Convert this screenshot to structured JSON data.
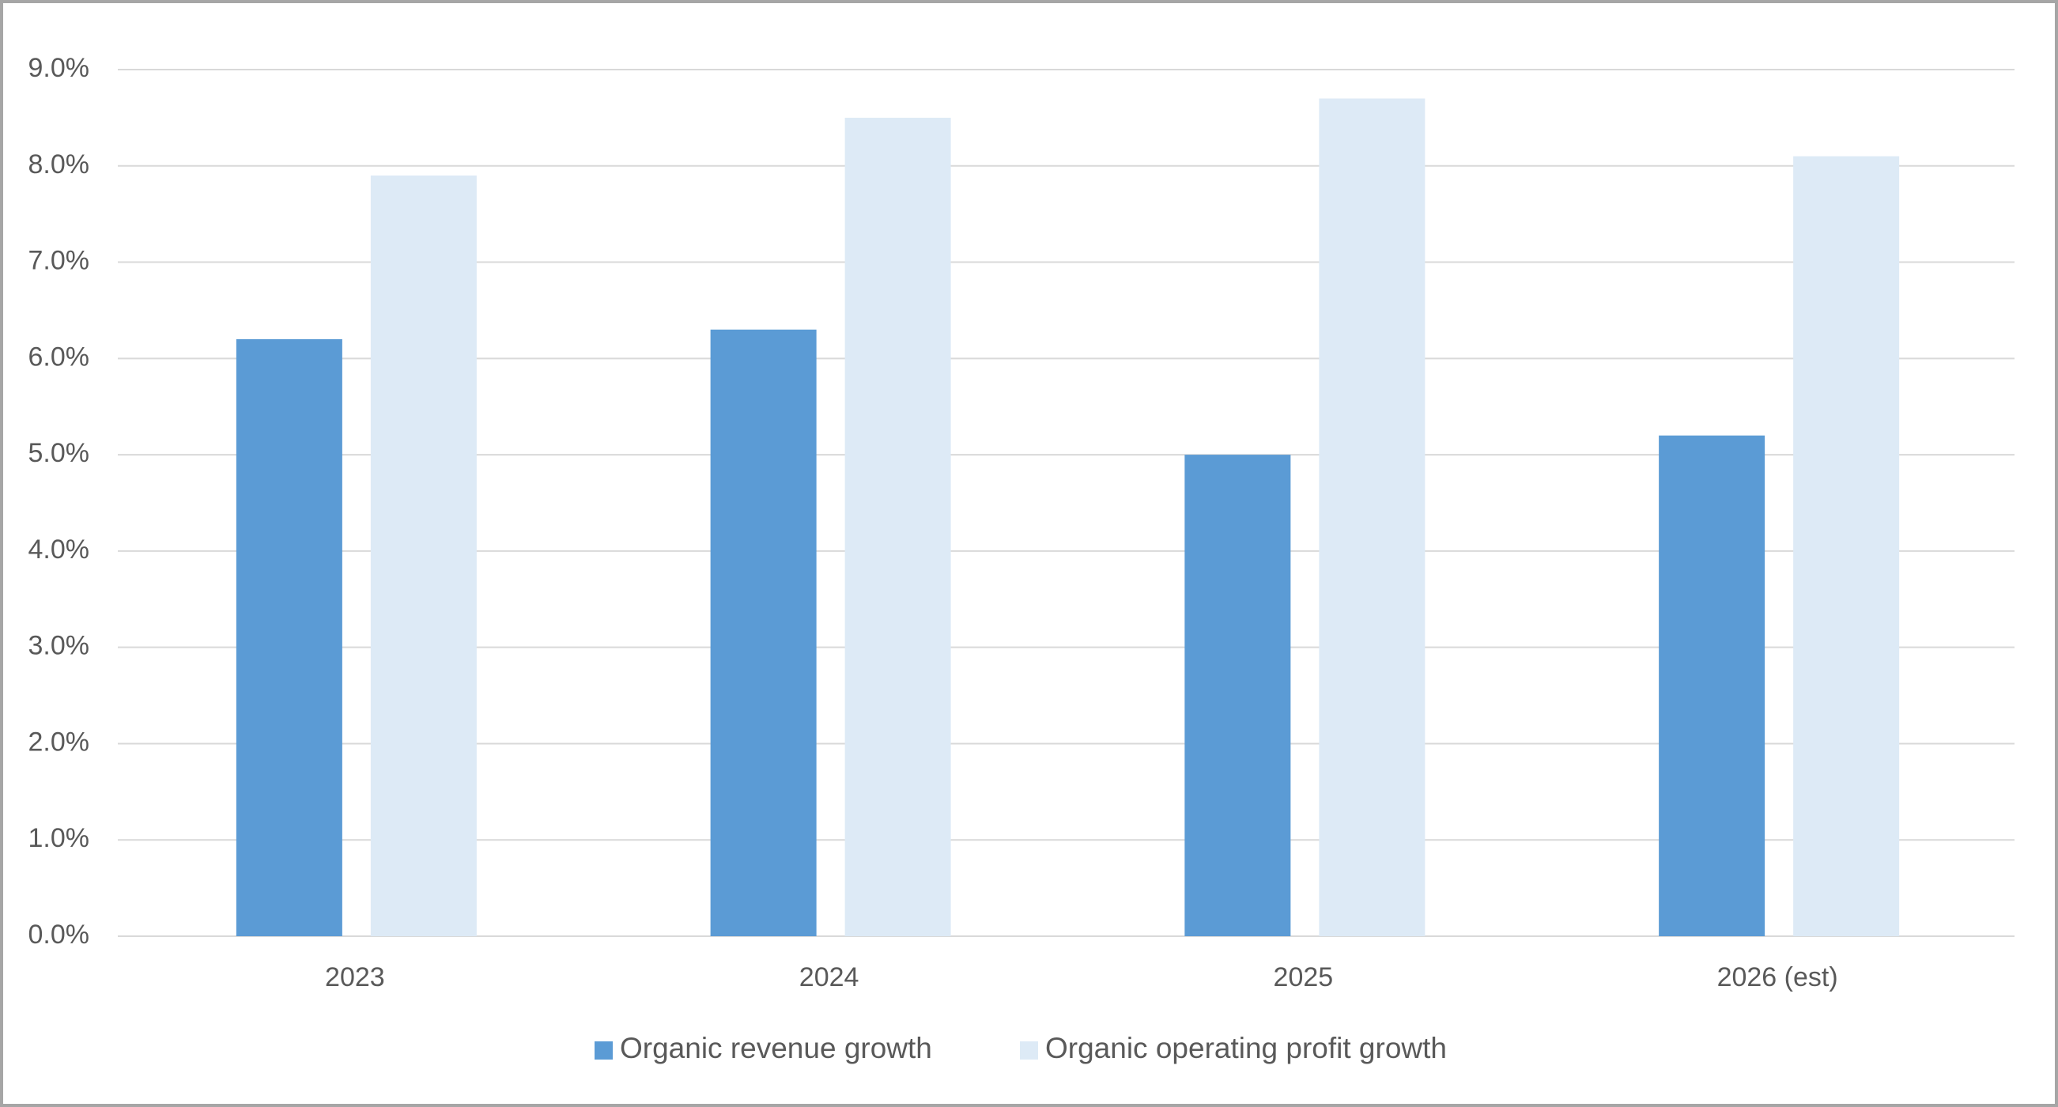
{
  "chart_data": {
    "type": "bar",
    "categories": [
      "2023",
      "2024",
      "2025",
      "2026 (est)"
    ],
    "series": [
      {
        "name": "Organic revenue growth",
        "color": "#5b9bd5",
        "values": [
          6.2,
          6.3,
          5.0,
          5.2
        ]
      },
      {
        "name": "Organic operating profit growth",
        "color": "#ddeaf6",
        "values": [
          7.9,
          8.5,
          8.7,
          8.1
        ]
      }
    ],
    "ylim": [
      0,
      9
    ],
    "yticks": [
      {
        "value": 0,
        "label": "0.0%"
      },
      {
        "value": 1,
        "label": "1.0%"
      },
      {
        "value": 2,
        "label": "2.0%"
      },
      {
        "value": 3,
        "label": "3.0%"
      },
      {
        "value": 4,
        "label": "4.0%"
      },
      {
        "value": 5,
        "label": "5.0%"
      },
      {
        "value": 6,
        "label": "6.0%"
      },
      {
        "value": 7,
        "label": "7.0%"
      },
      {
        "value": 8,
        "label": "8.0%"
      },
      {
        "value": 9,
        "label": "9.0%"
      }
    ],
    "grid": true,
    "legend": "bottom"
  }
}
